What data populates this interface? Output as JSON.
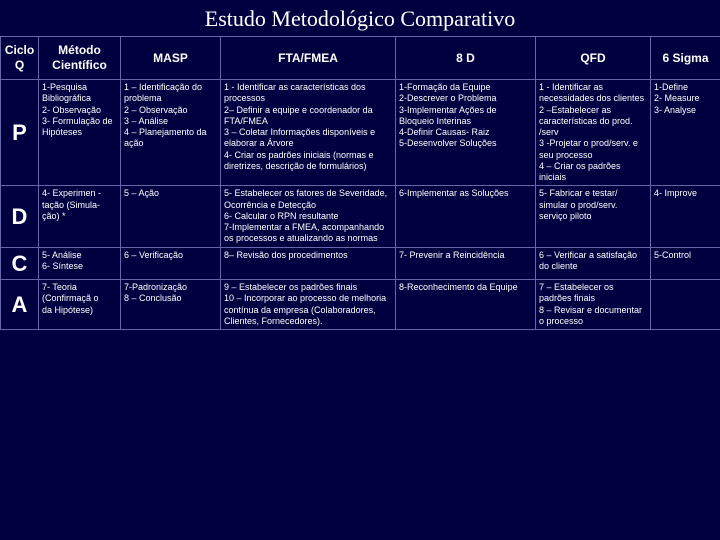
{
  "title": "Estudo Metodológico Comparativo",
  "headers": {
    "cycle": "Ciclo Q",
    "method": "Método Científico",
    "masp": "MASP",
    "fta": "FTA/FMEA",
    "d8": "8 D",
    "qfd": "QFD",
    "sixsigma": "6 Sigma"
  },
  "rows": {
    "p": {
      "label": "P",
      "method": "1-Pesquisa Bibliográfica\n2- Observação\n3- Formulação de Hipóteses",
      "masp": "1 – Identificação do problema\n2 – Observação\n3 – Análise\n4 – Planejamento da ação",
      "fta": "1 - Identificar as características dos processos\n2– Definir a equipe e coordenador da FTA/FMEA\n3 – Coletar Informações disponíveis e elaborar a Árvore\n4- Criar os padrões iniciais (normas e diretrizes, descrição de formulários)",
      "d8": "1-Formação da Equipe\n2-Descrever o Problema\n3-Implementar Ações de Bloqueio Interinas\n4-Definir Causas- Raiz\n5-Desenvolver Soluções",
      "qfd": "1 - Identificar as necessidades dos clientes\n2 –Estabelecer as características do prod. /serv\n3 -Projetar o prod/serv. e seu processo\n4 – Criar os padrões iniciais",
      "sixsigma": "1-Define\n2- Measure\n3- Analyse"
    },
    "d": {
      "label": "D",
      "method": "4- Experimen -\ntação (Simula-\nção) *",
      "masp": "5 – Ação",
      "fta": "5- Estabelecer os fatores de Severidade, Ocorrência e Detecção\n6- Calcular o RPN resultante\n7-Implementar a FMEA, acompanhando os processos e atualizando as normas",
      "d8": "6-Implementar as Soluções",
      "qfd": "5- Fabricar e testar/ simular o prod/serv. serviço piloto",
      "sixsigma": "4- Improve"
    },
    "c": {
      "label": "C",
      "method": "5- Análise\n6- Síntese",
      "masp": "6 – Verificação",
      "fta": "8– Revisão dos procedimentos",
      "d8": "7- Prevenir a Reincidência",
      "qfd": "6 – Verificar a satisfação do cliente",
      "sixsigma": "5-Control"
    },
    "a": {
      "label": "A",
      "method": "7- Teoria\n(Confirmaçã o\nda Hipótese)",
      "masp": "7-Padronização\n8 – Conclusão",
      "fta": "9 – Estabelecer os padrões finais\n10 – Incorporar ao processo de melhoria contínua da empresa (Colaboradores, Clientes, Fornecedores).",
      "d8": "8-Reconhecimento da Equipe",
      "qfd": "7 – Estabelecer os padrões finais\n8 – Revisar e documentar o processo",
      "sixsigma": ""
    }
  },
  "colors": {
    "background": "#000040",
    "border": "#6666aa",
    "text": "#ffffff"
  }
}
